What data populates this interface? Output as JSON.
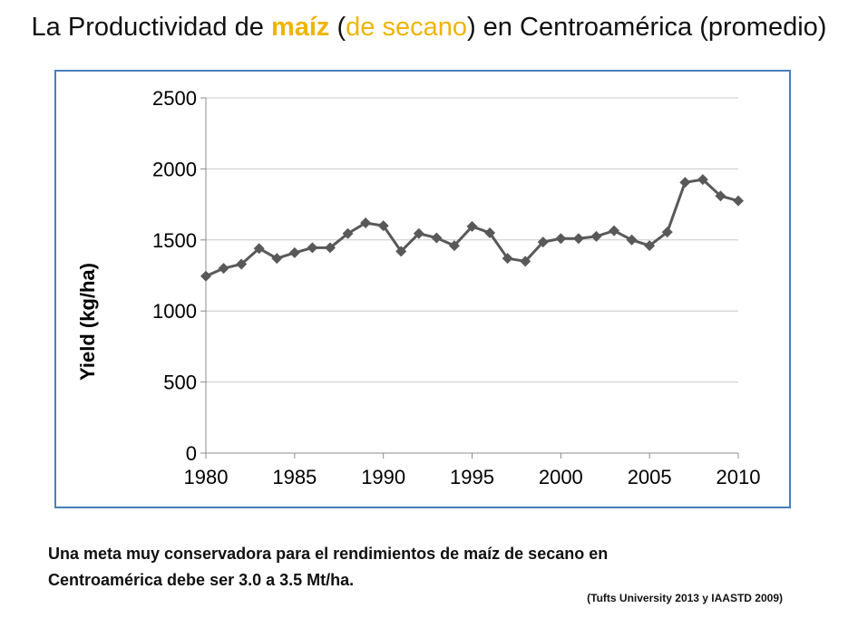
{
  "title": {
    "part1": "La Productividad de ",
    "highlight1": "maíz",
    "part2": " (",
    "highlight2": "de secano",
    "part3": ") en Centroamérica (promedio)"
  },
  "note": {
    "line1": "Una meta muy conservadora para el rendimientos de maíz de secano en",
    "line2": "Centroamérica debe ser 3.0 a 3.5 Mt/ha."
  },
  "citation": "(Tufts University 2013 y IAASTD 2009)",
  "chart_data": {
    "type": "line",
    "title": "",
    "xlabel": "",
    "ylabel": "Yield (kg/ha)",
    "xlim": [
      1980,
      2010
    ],
    "ylim": [
      0,
      2500
    ],
    "xticks": [
      1980,
      1985,
      1990,
      1995,
      2000,
      2005,
      2010
    ],
    "yticks": [
      0,
      500,
      1000,
      1500,
      2000,
      2500
    ],
    "grid": "horizontal",
    "legend": "none",
    "series_color": "#595959",
    "x": [
      1980,
      1981,
      1982,
      1983,
      1984,
      1985,
      1986,
      1987,
      1988,
      1989,
      1990,
      1991,
      1992,
      1993,
      1994,
      1995,
      1996,
      1997,
      1998,
      1999,
      2000,
      2001,
      2002,
      2003,
      2004,
      2005,
      2006,
      2007,
      2008,
      2009,
      2010
    ],
    "series": [
      {
        "values": [
          1245,
          1300,
          1330,
          1440,
          1370,
          1410,
          1445,
          1445,
          1545,
          1620,
          1600,
          1420,
          1545,
          1515,
          1460,
          1595,
          1550,
          1370,
          1350,
          1485,
          1510,
          1510,
          1525,
          1565,
          1500,
          1460,
          1555,
          1905,
          1925,
          1810,
          1775
        ]
      }
    ]
  }
}
